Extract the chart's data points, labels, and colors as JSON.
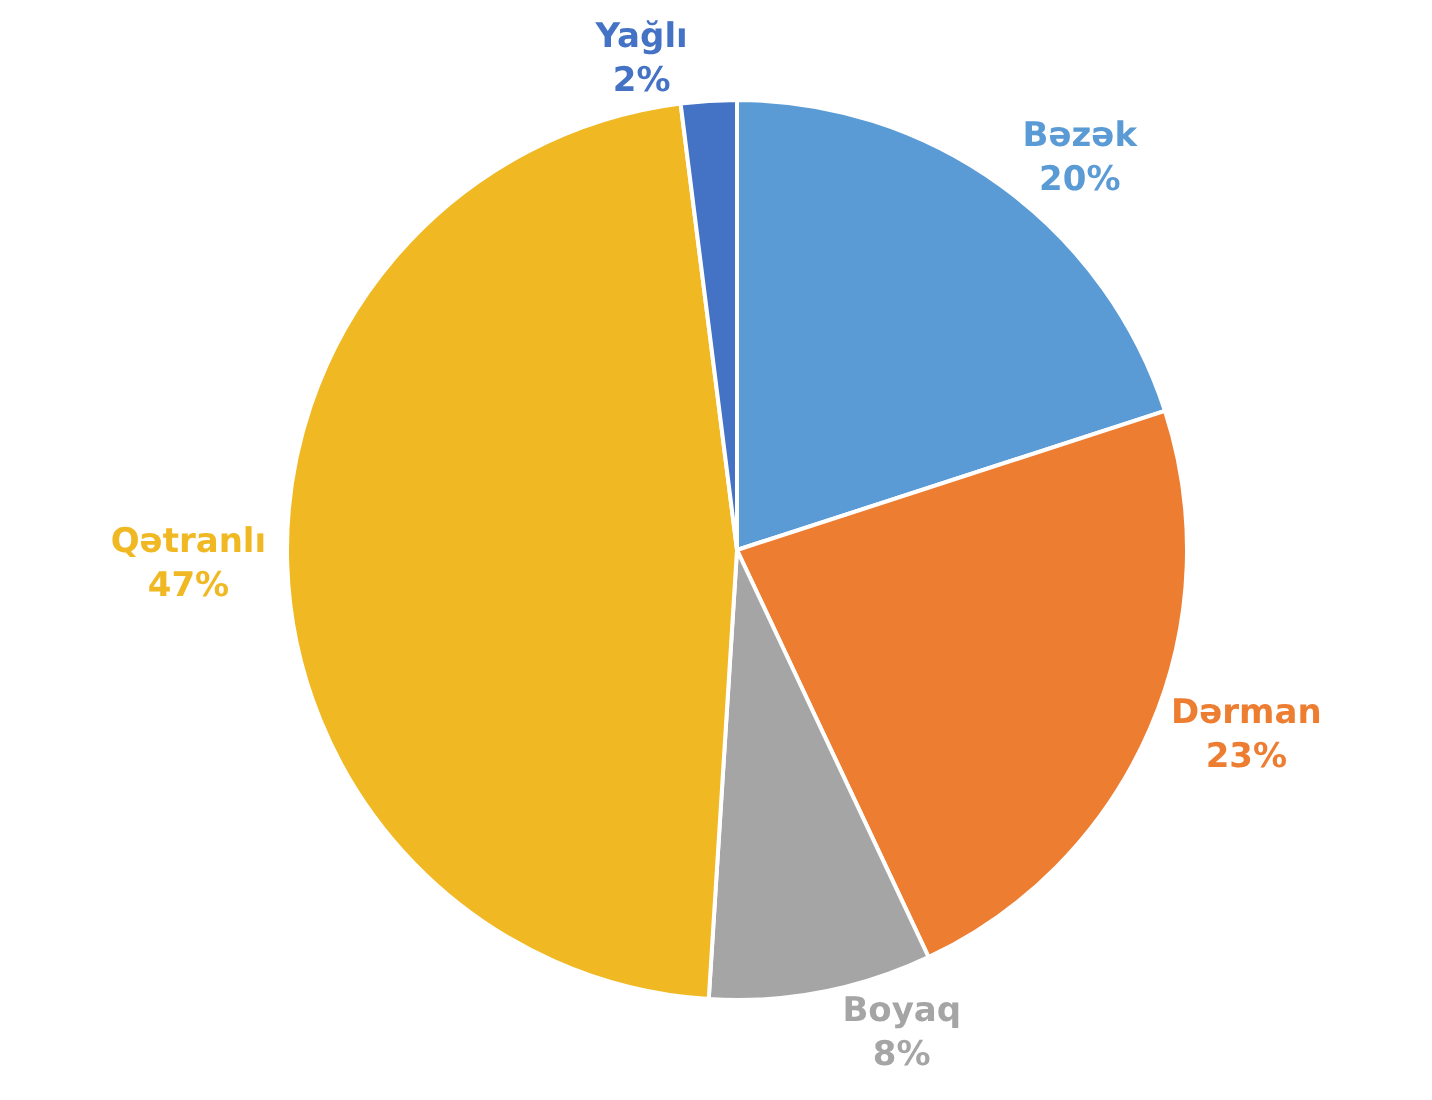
{
  "chart_data": {
    "type": "pie",
    "categories": [
      "Bəzək",
      "Dərman",
      "Boyaq",
      "Qətranlı",
      "Yağlı"
    ],
    "values": [
      20,
      23,
      8,
      47,
      2
    ],
    "value_labels": [
      "20%",
      "23%",
      "8%",
      "47%",
      "2%"
    ],
    "colors": [
      "#5b9bd5",
      "#ed7d31",
      "#a5a5a5",
      "#f0b923",
      "#4472c4"
    ],
    "legend": false
  }
}
